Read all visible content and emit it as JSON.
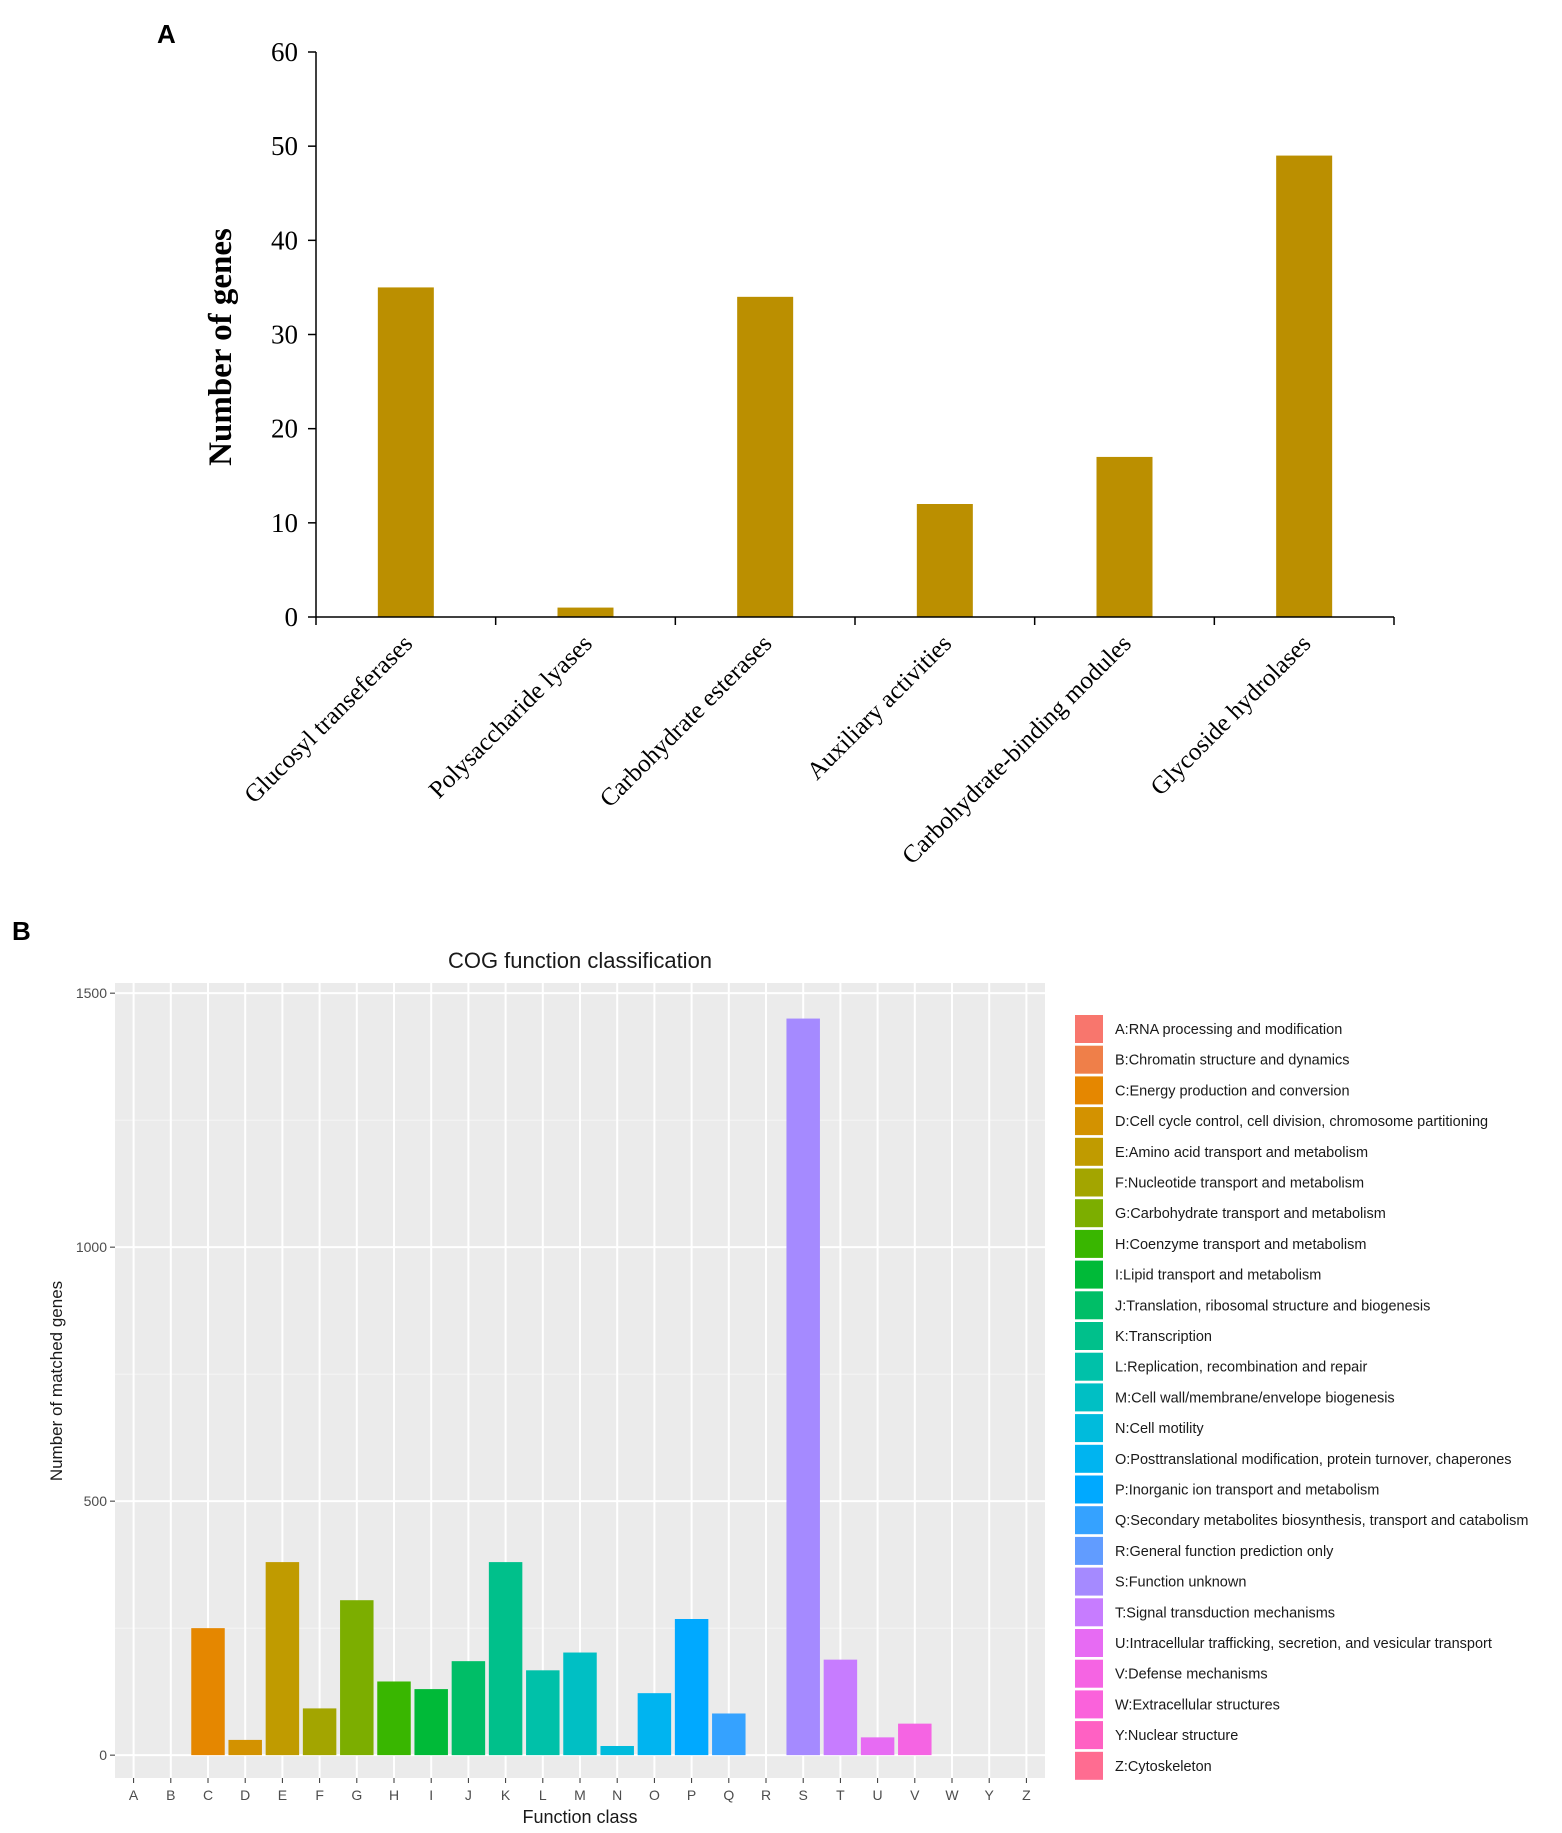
{
  "panels": {
    "a": "A",
    "b": "B"
  },
  "chart_data": [
    {
      "type": "bar",
      "panel": "A",
      "title": "",
      "xlabel": "",
      "ylabel": "Number of genes",
      "ylim": [
        0,
        60
      ],
      "yticks": [
        0,
        10,
        20,
        30,
        40,
        50,
        60
      ],
      "categories": [
        "Glucosyl transeferases",
        "Polysaccharide lyases",
        "Carbohydrate esterases",
        "Auxiliary activities",
        "Carbohydrate-binding modules",
        "Glycoside hydrolases"
      ],
      "values": [
        35,
        1,
        34,
        12,
        17,
        49
      ],
      "color": "#bb8f00",
      "grid": false
    },
    {
      "type": "bar",
      "panel": "B",
      "title": "COG function classification",
      "xlabel": "Function class",
      "ylabel": "Number of matched genes",
      "ylim": [
        -45,
        1520
      ],
      "yticks": [
        0,
        500,
        1000,
        1500
      ],
      "grid": true,
      "background": "#ebebeb",
      "categories": [
        "A",
        "B",
        "C",
        "D",
        "E",
        "F",
        "G",
        "H",
        "I",
        "J",
        "K",
        "L",
        "M",
        "N",
        "O",
        "P",
        "Q",
        "R",
        "S",
        "T",
        "U",
        "V",
        "W",
        "Y",
        "Z"
      ],
      "values": [
        0,
        0,
        250,
        30,
        380,
        92,
        305,
        145,
        130,
        185,
        380,
        167,
        202,
        18,
        122,
        268,
        82,
        0,
        1450,
        188,
        35,
        62,
        0,
        0,
        0
      ],
      "colors": [
        "#f8766d",
        "#ef7f49",
        "#e58700",
        "#d39200",
        "#c09b00",
        "#a3a500",
        "#7cae00",
        "#39b600",
        "#00ba38",
        "#00be67",
        "#00c08b",
        "#00c1a9",
        "#00bfc4",
        "#00bbdc",
        "#00b4f0",
        "#00a9ff",
        "#35a2ff",
        "#619cff",
        "#a58aff",
        "#c77cff",
        "#e76bf3",
        "#f564e3",
        "#fa62db",
        "#ff61c3",
        "#ff6c91"
      ],
      "legend_position": "right",
      "legend": [
        "A:RNA processing and modification",
        "B:Chromatin structure and dynamics",
        "C:Energy production and conversion",
        "D:Cell cycle control, cell division, chromosome partitioning",
        "E:Amino acid transport and metabolism",
        "F:Nucleotide transport and metabolism",
        "G:Carbohydrate transport and metabolism",
        "H:Coenzyme transport and metabolism",
        "I:Lipid transport and metabolism",
        "J:Translation, ribosomal structure and biogenesis",
        "K:Transcription",
        "L:Replication, recombination and repair",
        "M:Cell wall/membrane/envelope biogenesis",
        "N:Cell motility",
        "O:Posttranslational modification, protein turnover, chaperones",
        "P:Inorganic ion transport and metabolism",
        "Q:Secondary metabolites biosynthesis, transport and catabolism",
        "R:General function prediction only",
        "S:Function unknown",
        "T:Signal transduction mechanisms",
        "U:Intracellular trafficking, secretion, and vesicular transport",
        "V:Defense mechanisms",
        "W:Extracellular structures",
        "Y:Nuclear structure",
        "Z:Cytoskeleton"
      ]
    }
  ]
}
